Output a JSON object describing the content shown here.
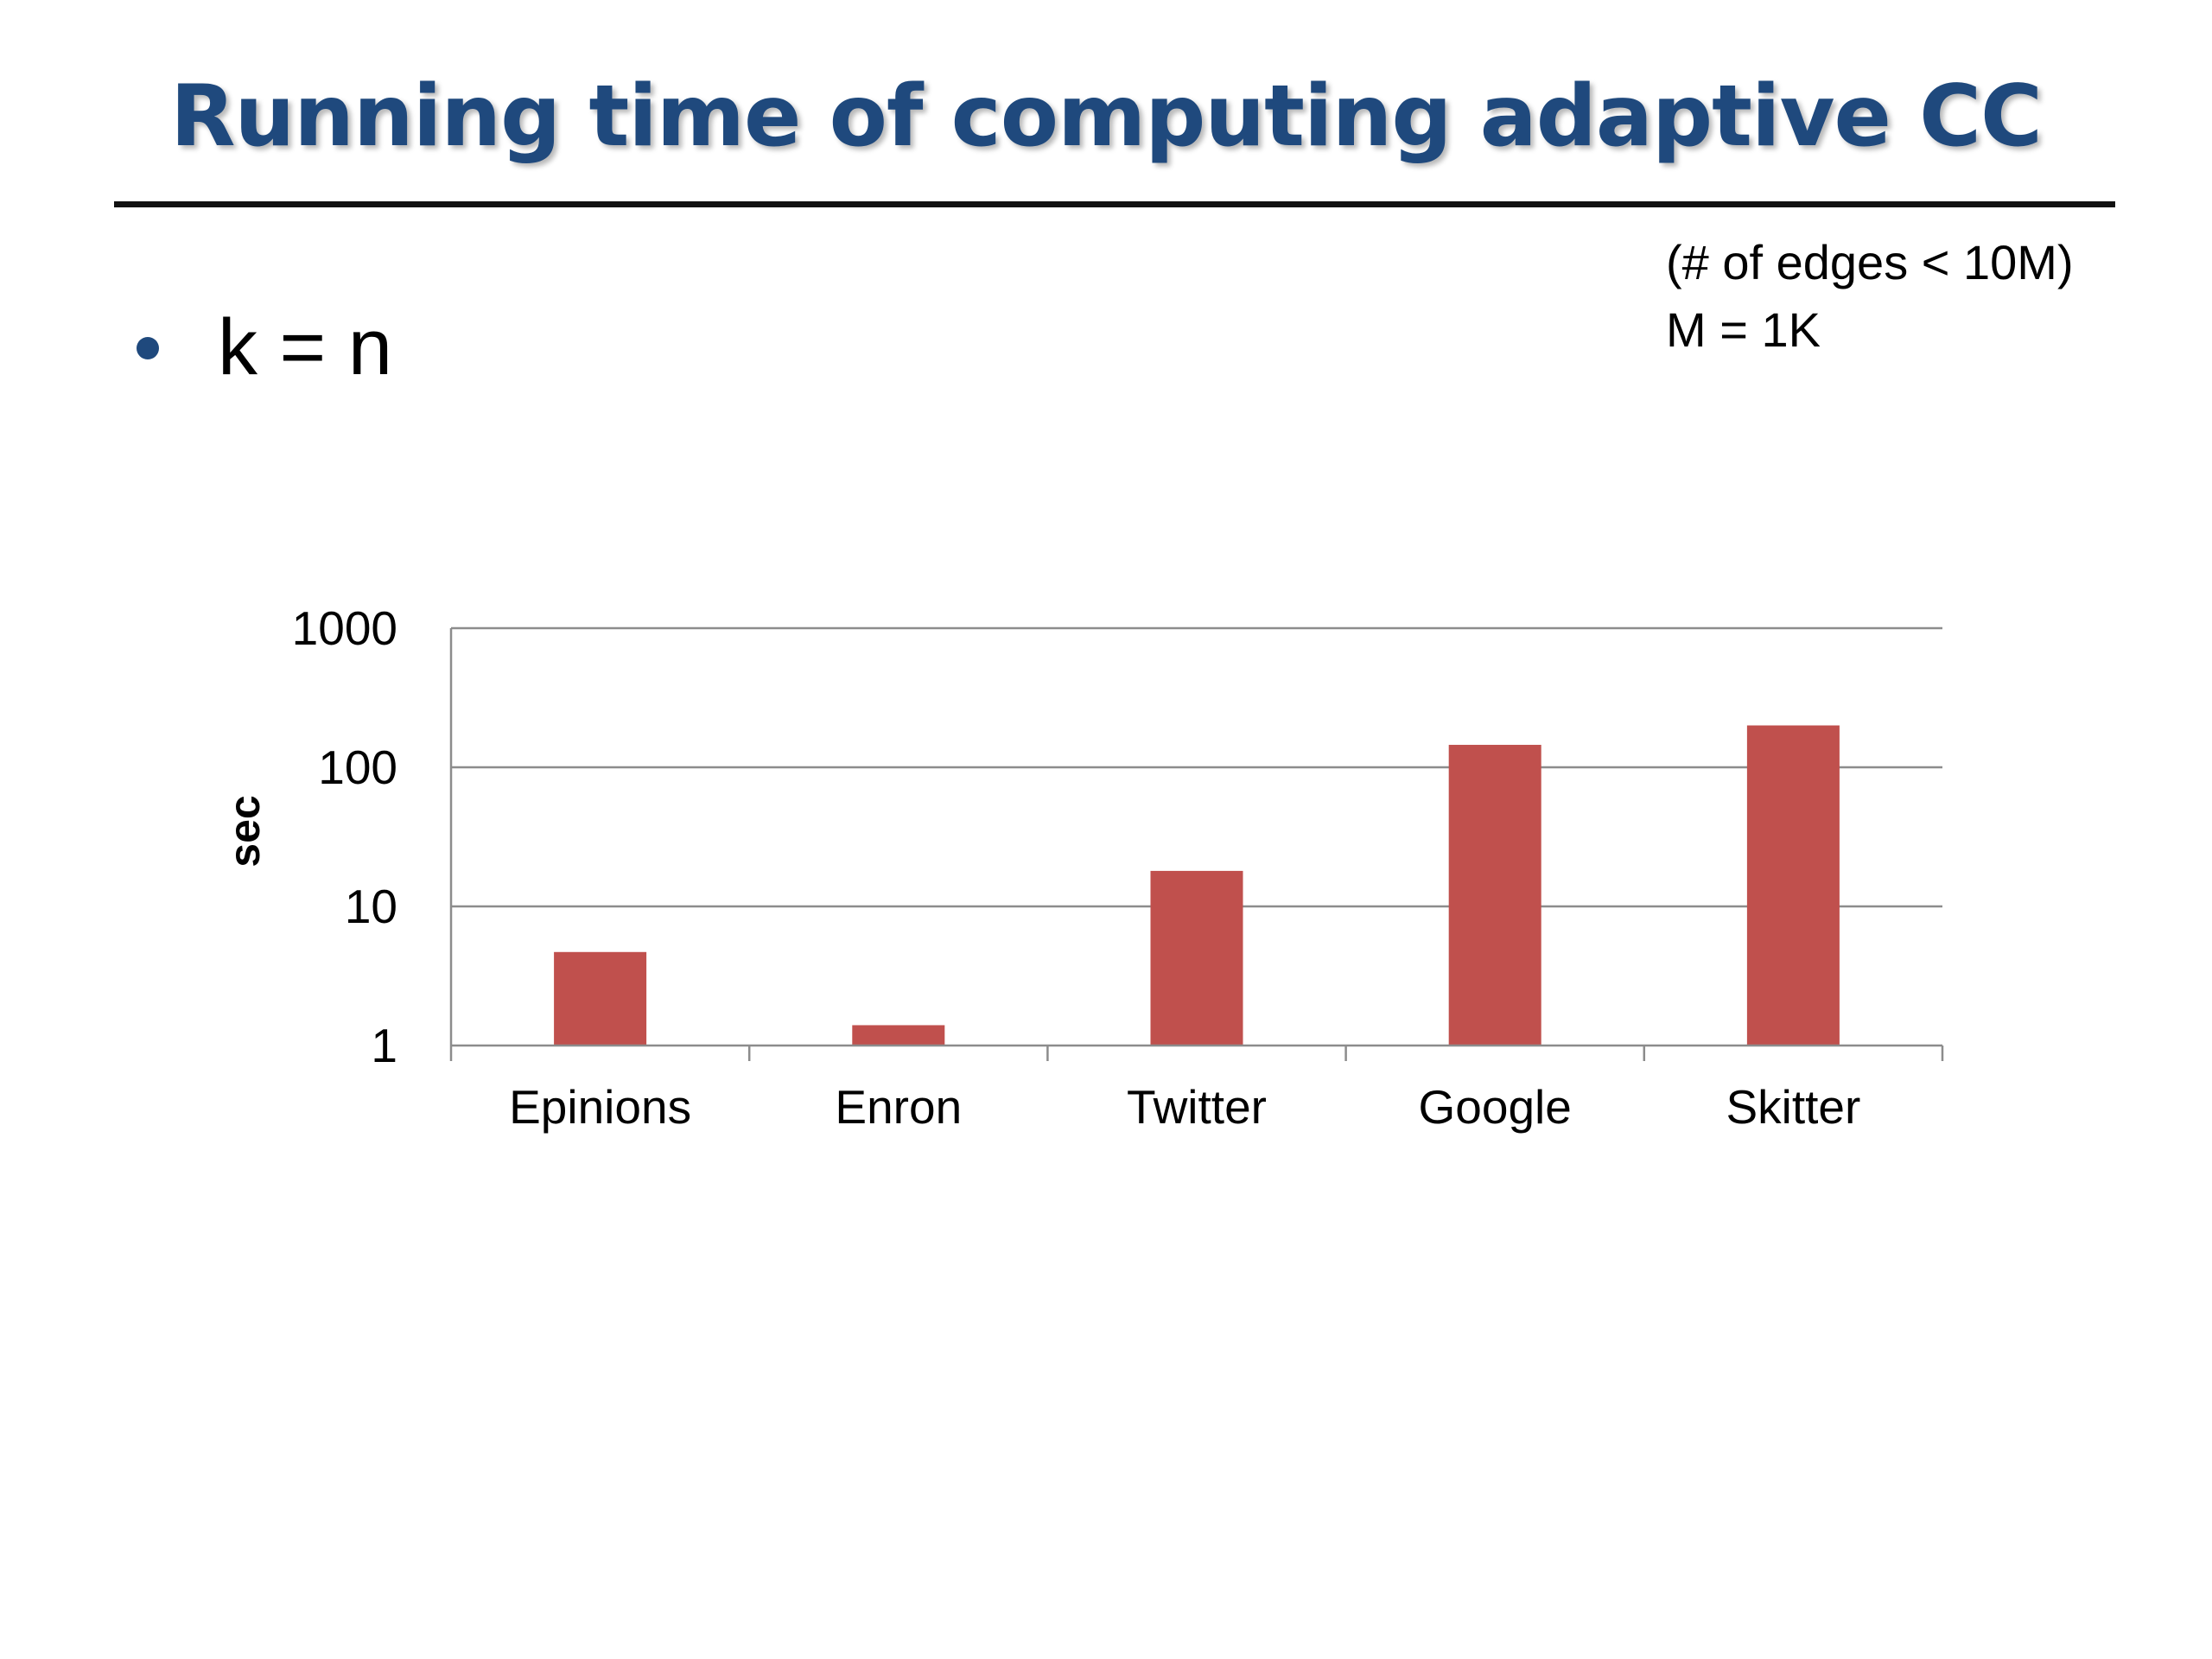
{
  "slide": {
    "title": "Running time of computing adaptive CC",
    "bullet": "k = n",
    "note_lines": [
      "(# of edges < 10M)",
      "M = 1K"
    ]
  },
  "chart_data": {
    "type": "bar",
    "categories": [
      "Epinions",
      "Enron",
      "Twitter",
      "Google",
      "Skitter"
    ],
    "values": [
      4.7,
      1.4,
      18,
      145,
      200
    ],
    "ylabel": "sec",
    "xlabel": "",
    "yscale": "log",
    "ylim": [
      1,
      1000
    ],
    "yticks": [
      1,
      10,
      100,
      1000
    ],
    "ytick_labels": [
      "1",
      "10",
      "100",
      "1000"
    ],
    "grid": true,
    "legend": "none",
    "bar_color": "#c0504d",
    "title_color": "#1f497d"
  }
}
